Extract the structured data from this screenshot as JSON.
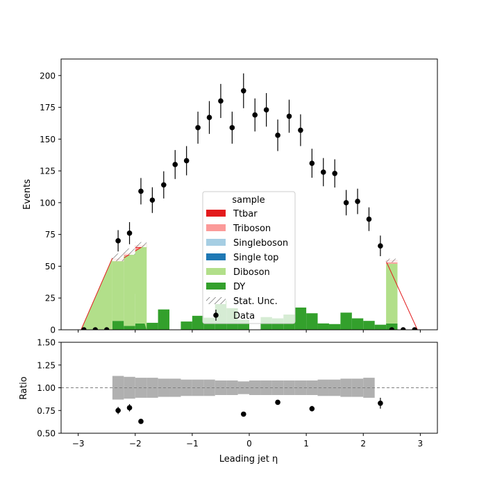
{
  "chart_data": [
    {
      "type": "stacked-bar+scatter",
      "panel": "main",
      "xlabel": "",
      "ylabel": "Events",
      "xlim": [
        -3.3,
        3.3
      ],
      "ylim": [
        0,
        213
      ],
      "x_ticks": [
        -3,
        -2,
        -1,
        0,
        1,
        2,
        3
      ],
      "y_ticks": [
        0,
        25,
        50,
        75,
        100,
        125,
        150,
        175,
        200
      ],
      "bin_edges": [
        -3.0,
        -2.8,
        -2.6,
        -2.4,
        -2.2,
        -2.0,
        -1.8,
        -1.6,
        -1.4,
        -1.2,
        -1.0,
        -0.8,
        -0.6,
        -0.4,
        -0.2,
        0.0,
        0.2,
        0.4,
        0.6,
        0.8,
        1.0,
        1.2,
        1.4,
        1.6,
        1.8,
        2.0,
        2.2,
        2.4,
        2.6,
        2.8,
        3.0
      ],
      "stack_series": [
        {
          "name": "DY",
          "color": "#33a02c",
          "values": [
            0,
            0,
            0,
            7,
            3,
            5,
            5.5,
            16,
            0,
            6.5,
            11,
            9.5,
            23,
            17,
            8,
            0,
            10,
            9,
            12,
            17.5,
            13,
            5,
            4.5,
            13.5,
            9,
            7,
            4,
            5,
            0,
            0
          ]
        },
        {
          "name": "Diboson",
          "color": "#b2df8a",
          "values": [
            0,
            0,
            0,
            47,
            55,
            57,
            0,
            0,
            0,
            0,
            0,
            0,
            0,
            0,
            0,
            0,
            0,
            0,
            0,
            0,
            0,
            0,
            0,
            0,
            0,
            0,
            0,
            47,
            0,
            0
          ]
        },
        {
          "name": "Single top",
          "color": "#1f78b4",
          "values": [
            0,
            0,
            0,
            0,
            0,
            0,
            0,
            0,
            0,
            0,
            0,
            0,
            0,
            0,
            0,
            0,
            0,
            0,
            0,
            0,
            0,
            0,
            0,
            0,
            0,
            0,
            0,
            0,
            0,
            0
          ]
        },
        {
          "name": "Singleboson",
          "color": "#a6cee3",
          "values": [
            0,
            0,
            0,
            0,
            0,
            0,
            0,
            0,
            0,
            0,
            0,
            0,
            0,
            0,
            0,
            0,
            0,
            0,
            0,
            0,
            0,
            0,
            0,
            0,
            0,
            0,
            0,
            0,
            0,
            0
          ]
        },
        {
          "name": "Triboson",
          "color": "#fb9a99",
          "values": [
            0,
            0,
            0,
            1,
            1,
            2.5,
            0,
            0,
            0,
            0,
            0,
            0,
            0,
            0,
            0,
            0,
            0,
            0,
            0,
            0,
            0,
            0,
            0,
            0,
            0,
            0,
            0,
            1.5,
            0,
            0
          ]
        },
        {
          "name": "Ttbar",
          "color": "#e31a1c",
          "values": [
            0,
            0,
            0,
            1,
            1.5,
            2,
            0,
            0,
            0,
            0,
            0,
            0,
            0,
            0,
            0,
            0,
            0,
            0,
            0,
            0,
            0,
            0,
            0,
            0,
            0,
            0,
            0,
            1.5,
            0,
            0
          ]
        }
      ],
      "stat_unc": {
        "name": "Stat. Unc.",
        "bins": [
          {
            "bin": 3,
            "low": 54,
            "high": 60
          },
          {
            "bin": 4,
            "low": 59,
            "high": 64
          },
          {
            "bin": 5,
            "low": 65,
            "high": 69
          },
          {
            "bin": 27,
            "low": 53,
            "high": 56
          }
        ]
      },
      "ramps": [
        {
          "x0": -2.95,
          "y0": 0,
          "x1": -2.4,
          "y1": 56.5
        },
        {
          "x0": -2.2,
          "y0": 56.5,
          "x1": -1.8,
          "y1": 67.5
        },
        {
          "x0": 2.4,
          "y0": 54,
          "x1": 2.95,
          "y1": 0
        }
      ],
      "data": {
        "name": "Data",
        "x": [
          -2.9,
          -2.7,
          -2.5,
          -2.3,
          -2.1,
          -1.9,
          -1.7,
          -1.5,
          -1.3,
          -1.1,
          -0.9,
          -0.7,
          -0.5,
          -0.3,
          -0.1,
          0.1,
          0.3,
          0.5,
          0.7,
          0.9,
          1.1,
          1.3,
          1.5,
          1.7,
          1.9,
          2.1,
          2.3,
          2.5,
          2.7,
          2.9
        ],
        "y": [
          0,
          0,
          0,
          70,
          76,
          109,
          102,
          114,
          130,
          133,
          159,
          167,
          180,
          159,
          188,
          169,
          173,
          153,
          168,
          157,
          131,
          124,
          123,
          100,
          101,
          87,
          66,
          0,
          0,
          0
        ],
        "yerr": [
          0,
          0,
          0,
          8.4,
          8.7,
          10.4,
          10.1,
          10.7,
          11.4,
          11.5,
          12.6,
          12.9,
          13.4,
          12.6,
          13.7,
          13.0,
          13.2,
          12.4,
          13.0,
          12.5,
          11.4,
          11.1,
          11.1,
          10.0,
          10.0,
          9.3,
          8.1,
          0,
          0,
          0
        ]
      },
      "legend": {
        "title": "sample",
        "placement": "bottom-center",
        "entries": [
          "Ttbar",
          "Triboson",
          "Singleboson",
          "Single top",
          "Diboson",
          "DY",
          "Stat. Unc.",
          "Data"
        ]
      }
    },
    {
      "type": "scatter",
      "panel": "ratio",
      "xlabel": "Leading jet  η",
      "ylabel": "Ratio",
      "xlim": [
        -3.3,
        3.3
      ],
      "ylim": [
        0.5,
        1.5
      ],
      "x_ticks": [
        -3,
        -2,
        -1,
        0,
        1,
        2,
        3
      ],
      "y_ticks": [
        0.5,
        0.75,
        1.0,
        1.25,
        1.5
      ],
      "y_tick_labels": [
        "0.50",
        "0.75",
        "1.00",
        "1.25",
        "1.50"
      ],
      "x_tick_labels": [
        "−3",
        "−2",
        "−1",
        "0",
        "1",
        "2",
        "3"
      ],
      "reference_line": 1.0,
      "unc_band": {
        "x_edges": [
          -2.4,
          -2.2,
          -2.0,
          -1.8,
          -1.6,
          -1.4,
          -1.2,
          -1.0,
          -0.8,
          -0.6,
          -0.4,
          -0.2,
          0.0,
          0.2,
          0.4,
          0.6,
          0.8,
          1.0,
          1.2,
          1.4,
          1.6,
          1.8,
          2.0,
          2.2
        ],
        "half_width": [
          0.13,
          0.12,
          0.11,
          0.11,
          0.1,
          0.1,
          0.09,
          0.09,
          0.09,
          0.08,
          0.08,
          0.07,
          0.08,
          0.08,
          0.08,
          0.08,
          0.08,
          0.08,
          0.09,
          0.09,
          0.1,
          0.1,
          0.11
        ]
      },
      "points": {
        "x": [
          -2.3,
          -2.1,
          -1.9,
          -0.1,
          0.5,
          1.1,
          2.3
        ],
        "y": [
          0.75,
          0.78,
          0.63,
          0.71,
          0.84,
          0.77,
          0.83
        ],
        "yerr": [
          0.04,
          0.04,
          0.02,
          0.02,
          0.02,
          0.03,
          0.06
        ]
      }
    }
  ],
  "labels": {
    "ylabel_main": "Events",
    "ylabel_ratio": "Ratio",
    "xlabel": "Leading jet  η",
    "legend_title": "sample",
    "legend_ttbar": "Ttbar",
    "legend_triboson": "Triboson",
    "legend_singleboson": "Singleboson",
    "legend_singletop": "Single top",
    "legend_diboson": "Diboson",
    "legend_dy": "DY",
    "legend_statunc": "Stat. Unc.",
    "legend_data": "Data"
  }
}
